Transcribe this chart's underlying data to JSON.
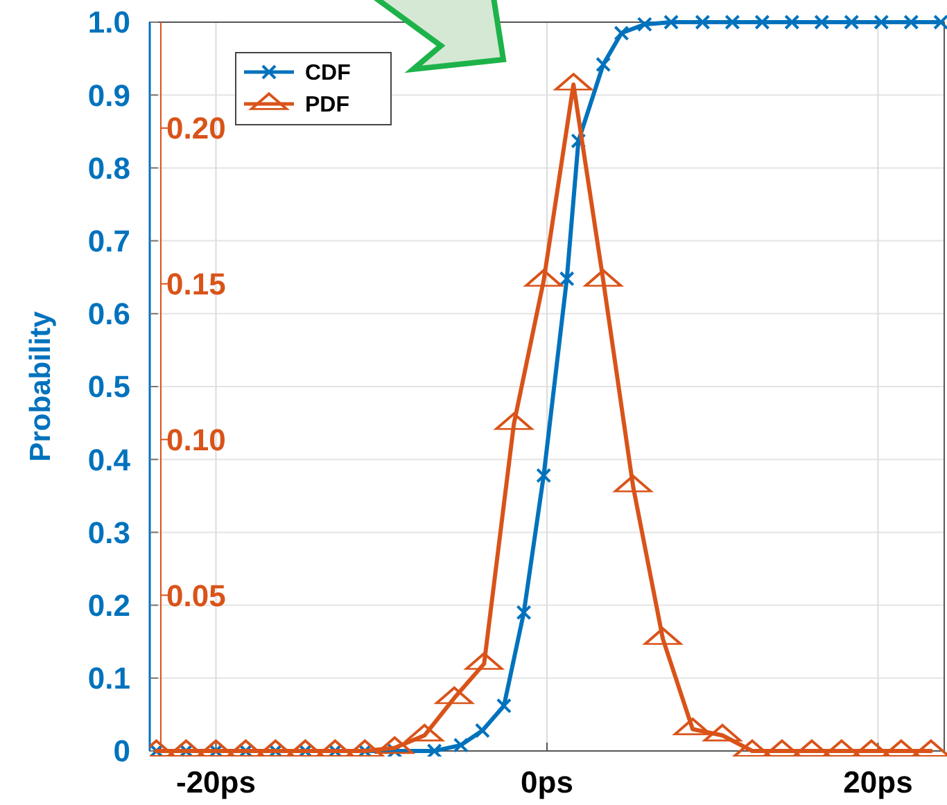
{
  "chart_data": {
    "type": "line",
    "ylabel": "Probability",
    "xlim": [
      -24,
      24
    ],
    "xticks": [
      {
        "value": -20,
        "label": "-20ps"
      },
      {
        "value": 0,
        "label": "0ps"
      },
      {
        "value": 20,
        "label": "20ps"
      }
    ],
    "ylim": [
      0,
      1
    ],
    "yticks": [
      0,
      0.1,
      0.2,
      0.3,
      0.4,
      0.5,
      0.6,
      0.7,
      0.8,
      0.9,
      {
        "value": 1,
        "label": "1.0"
      }
    ],
    "y2lim": [
      0,
      0.234
    ],
    "y2ticks": [
      0.05,
      {
        "value": 0.1,
        "label": "0.10"
      },
      0.15,
      {
        "value": 0.2,
        "label": "0.20"
      }
    ],
    "grid": true,
    "legend": "top left",
    "line_style": "solid",
    "series": [
      {
        "name": "CDF",
        "color": "#0072bd",
        "marker": "cross",
        "x": [
          -23.6,
          -21.8,
          -20,
          -18.2,
          -16.4,
          -14.6,
          -12.8,
          -11,
          -9.2,
          -6.8,
          -5.2,
          -3.9,
          -2.6,
          -1.4,
          -0.2,
          1.2,
          1.9,
          3.4,
          4.5,
          5.9,
          7.5,
          9.4,
          11.2,
          13,
          14.8,
          16.6,
          18.4,
          20.2,
          22,
          23.8
        ],
        "values": [
          0,
          0,
          0,
          0,
          0,
          0,
          0,
          0,
          0,
          0,
          0.008,
          0.028,
          0.062,
          0.19,
          0.378,
          0.648,
          0.837,
          0.942,
          0.985,
          0.997,
          1,
          1,
          1,
          1,
          1,
          1,
          1,
          1,
          1,
          1
        ]
      },
      {
        "name": "PDF",
        "color": "#d95319",
        "marker": "triangle",
        "axis": "y2",
        "x": [
          -23.6,
          -21.8,
          -20,
          -18.2,
          -16.4,
          -14.6,
          -12.8,
          -11,
          -9.2,
          -7.4,
          -5.6,
          -3.8,
          -2,
          -0.2,
          1.6,
          3.4,
          5.2,
          7,
          8.8,
          10.6,
          12.4,
          14.2,
          16,
          17.8,
          19.6,
          21.4,
          23.2
        ],
        "values": [
          0,
          0,
          0,
          0,
          0,
          0,
          0,
          0,
          0.001,
          0.005,
          0.017,
          0.028,
          0.105,
          0.151,
          0.214,
          0.151,
          0.085,
          0.036,
          0.007,
          0.005,
          0,
          0,
          0,
          0,
          0,
          0,
          0
        ]
      }
    ]
  }
}
